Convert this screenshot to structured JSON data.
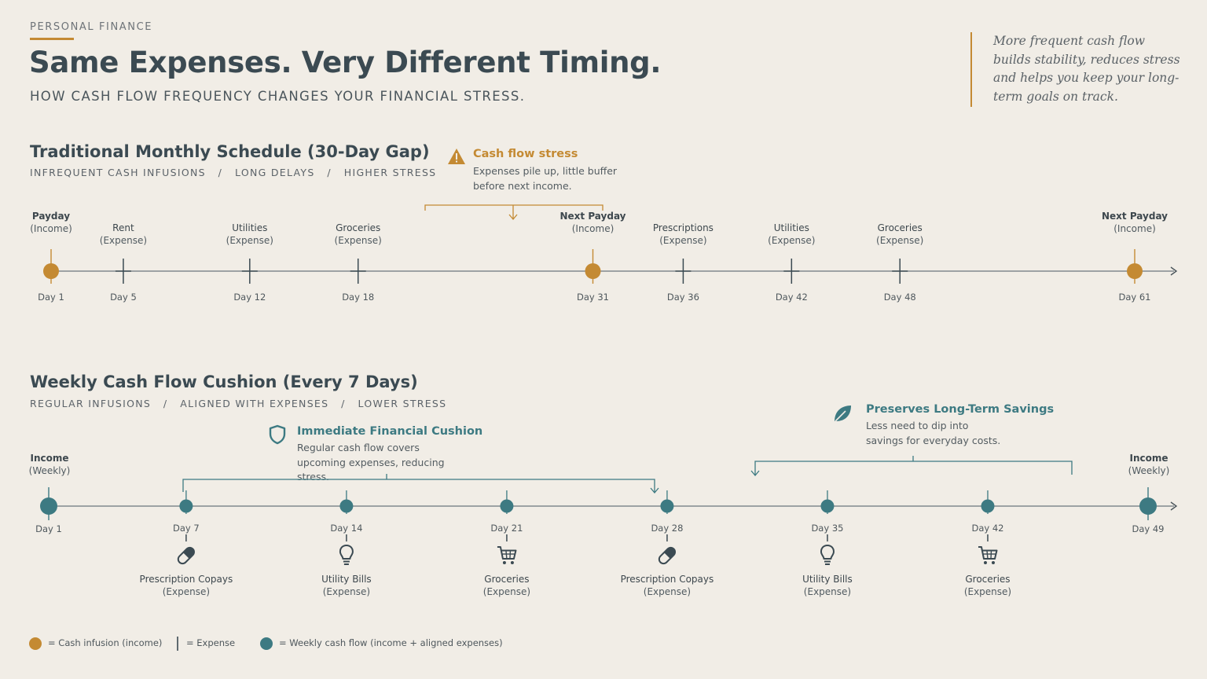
{
  "header": {
    "kicker": "PERSONAL FINANCE",
    "title": "Same Expenses. Very Different Timing.",
    "subtitle": "HOW CASH FLOW FREQUENCY CHANGES YOUR FINANCIAL STRESS.",
    "quote": "More frequent cash flow builds stability, reduces stress and helps you keep your long-term goals on track."
  },
  "monthly": {
    "title": "Traditional Monthly Schedule (30-Day Gap)",
    "subtitle": "INFREQUENT CASH INFUSIONS   /   LONG DELAYS   /   HIGHER STRESS",
    "stress": {
      "title": "Cash flow stress",
      "desc": "Expenses pile up, little buffer before next income."
    },
    "events": [
      {
        "day": 1,
        "day_label": "Day 1",
        "name": "Payday",
        "kind": "(Income)",
        "type": "income"
      },
      {
        "day": 5,
        "day_label": "Day 5",
        "name": "Rent",
        "kind": "(Expense)",
        "type": "expense"
      },
      {
        "day": 12,
        "day_label": "Day 12",
        "name": "Utilities",
        "kind": "(Expense)",
        "type": "expense"
      },
      {
        "day": 18,
        "day_label": "Day 18",
        "name": "Groceries",
        "kind": "(Expense)",
        "type": "expense"
      },
      {
        "day": 31,
        "day_label": "Day 31",
        "name": "Next Payday",
        "kind": "(Income)",
        "type": "income"
      },
      {
        "day": 36,
        "day_label": "Day 36",
        "name": "Prescriptions",
        "kind": "(Expense)",
        "type": "expense"
      },
      {
        "day": 42,
        "day_label": "Day 42",
        "name": "Utilities",
        "kind": "(Expense)",
        "type": "expense"
      },
      {
        "day": 48,
        "day_label": "Day 48",
        "name": "Groceries",
        "kind": "(Expense)",
        "type": "expense"
      },
      {
        "day": 61,
        "day_label": "Day 61",
        "name": "Next Payday",
        "kind": "(Income)",
        "type": "income"
      }
    ]
  },
  "weekly": {
    "title": "Weekly Cash Flow Cushion (Every 7 Days)",
    "subtitle": "REGULAR INFUSIONS   /   ALIGNED WITH EXPENSES   /   LOWER STRESS",
    "cushion": {
      "title": "Immediate Financial Cushion",
      "desc": "Regular cash flow covers upcoming expenses, reducing stress."
    },
    "savings": {
      "title": "Preserves Long-Term Savings",
      "desc": "Less need to dip into savings for everyday costs."
    },
    "income_start": {
      "name": "Income",
      "kind": "(Weekly)"
    },
    "income_end": {
      "name": "Income",
      "kind": "(Weekly)"
    },
    "events": [
      {
        "day": 1,
        "day_label": "Day 1",
        "type": "income"
      },
      {
        "day": 7,
        "day_label": "Day 7",
        "type": "weekly",
        "name": "Prescription Copays",
        "kind": "(Expense)",
        "icon": "pill-icon"
      },
      {
        "day": 14,
        "day_label": "Day 14",
        "type": "weekly",
        "name": "Utility Bills",
        "kind": "(Expense)",
        "icon": "lightbulb-icon"
      },
      {
        "day": 21,
        "day_label": "Day 21",
        "type": "weekly",
        "name": "Groceries",
        "kind": "(Expense)",
        "icon": "cart-icon"
      },
      {
        "day": 28,
        "day_label": "Day 28",
        "type": "weekly",
        "name": "Prescription Copays",
        "kind": "(Expense)",
        "icon": "pill-icon"
      },
      {
        "day": 35,
        "day_label": "Day 35",
        "type": "weekly",
        "name": "Utility Bills",
        "kind": "(Expense)",
        "icon": "lightbulb-icon"
      },
      {
        "day": 42,
        "day_label": "Day 42",
        "type": "weekly",
        "name": "Groceries",
        "kind": "(Expense)",
        "icon": "cart-icon"
      },
      {
        "day": 49,
        "day_label": "Day 49",
        "type": "income"
      }
    ]
  },
  "legend": {
    "income": "= Cash infusion (income)",
    "expense": "= Expense",
    "weekly": "= Weekly cash flow (income + aligned expenses)"
  },
  "colors": {
    "income": "#c48a33",
    "weekly": "#3d7a82",
    "ink": "#3b4a52",
    "paper": "#f1ede6"
  }
}
